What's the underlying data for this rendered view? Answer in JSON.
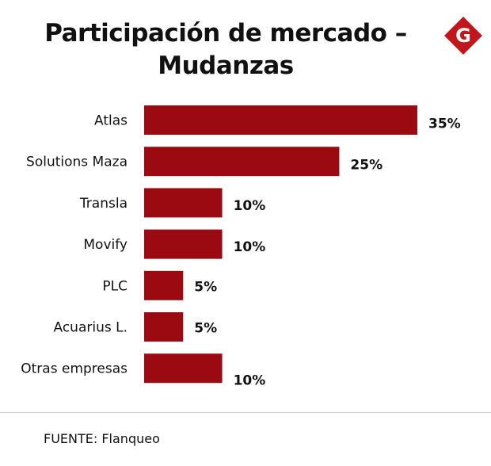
{
  "header": {
    "title_line1": "Participación de mercado –",
    "title_line2": "Mudanzas"
  },
  "logo": {
    "icon": "g-diamond-logo",
    "letter": "G",
    "color": "#c0161c"
  },
  "colors": {
    "bar": "#9b0a10"
  },
  "chart_data": {
    "type": "bar",
    "orientation": "horizontal",
    "categories": [
      "Atlas",
      "Solutions Maza",
      "Transla",
      "Movify",
      "PLC",
      "Acuarius L.",
      "Otras empresas"
    ],
    "values": [
      35,
      25,
      10,
      10,
      5,
      5,
      10
    ],
    "labels": [
      "35%",
      "25%",
      "10%",
      "10%",
      "5%",
      "5%",
      "10%"
    ],
    "unit": "%",
    "title": "Participación de mercado – Mudanzas",
    "xlabel": "",
    "ylabel": "",
    "xlim": [
      0,
      35
    ],
    "grid": false,
    "legend": "none"
  },
  "footer": {
    "source": "FUENTE: Flanqueo"
  }
}
